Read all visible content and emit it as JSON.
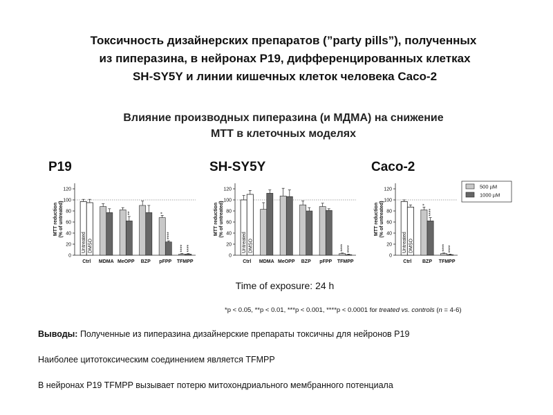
{
  "slide": {
    "title": [
      "Токсичность дизайнерских препаратов (”party pills”), полученных",
      "из пиперазина, в нейронах P19, дифференцированных клетках",
      "SH-SY5Y и линии кишечных клеток человека Caco-2"
    ],
    "subtitle": [
      "Влияние производных пиперазина (и МДМА) на снижение",
      "МТТ в клеточных моделях"
    ],
    "exposure": "Time of exposure: 24 h",
    "footnote": [
      "*p < 0.05, **p < 0.01, ***p < 0.001, ****p < 0.0001 for ",
      "treated vs. controls",
      " (",
      "n",
      " = 4-6)"
    ],
    "conclusions": {
      "label": "Выводы:",
      "lines": [
        " Полученные из пиперазина дизайнерские препараты токсичны для нейронов P19",
        "Наиболее цитотоксическим соединением является TFMPP",
        "В нейронах P19  TFMPP вызывает потерю митохондриального мембранного потенциала"
      ]
    }
  },
  "chart_data": [
    {
      "type": "bar",
      "title": "P19",
      "ylabel": [
        "MTT reduction",
        "(% of untreated)"
      ],
      "categories": [
        "Ctrl",
        "MDMA",
        "MeOPP",
        "BZP",
        "pFPP",
        "TFMPP"
      ],
      "controls": [
        {
          "label": "Untreated",
          "value": 97,
          "error": 4
        },
        {
          "label": "DMSO",
          "value": 95,
          "error": 6
        }
      ],
      "series": [
        {
          "color": "#c8c8c8",
          "values": [
            null,
            88,
            82,
            90,
            68,
            2
          ],
          "errors": [
            null,
            5,
            4,
            8,
            4,
            1
          ],
          "sig": [
            null,
            null,
            null,
            null,
            "*",
            "****"
          ]
        },
        {
          "color": "#666666",
          "values": [
            null,
            77,
            62,
            77,
            24,
            2
          ],
          "errors": [
            null,
            7,
            8,
            13,
            2,
            1
          ],
          "sig": [
            null,
            null,
            "**",
            null,
            "****",
            "****"
          ]
        }
      ],
      "reference": 100,
      "ylim": [
        0,
        130
      ],
      "yticks": [
        0,
        20,
        40,
        60,
        80,
        100,
        120
      ]
    },
    {
      "type": "bar",
      "title": "SH-SY5Y",
      "ylabel": [
        "MTT reduction",
        "(% of untreated)"
      ],
      "categories": [
        "Ctrl",
        "MDMA",
        "MeOPP",
        "BZP",
        "pFPP",
        "TFMPP"
      ],
      "controls": [
        {
          "label": "Untreated",
          "value": 100,
          "error": 8
        },
        {
          "label": "DMSO",
          "value": 110,
          "error": 7
        }
      ],
      "series": [
        {
          "color": "#c8c8c8",
          "values": [
            null,
            83,
            107,
            91,
            88,
            3
          ],
          "errors": [
            null,
            12,
            14,
            7,
            6,
            1
          ],
          "sig": [
            null,
            null,
            null,
            null,
            null,
            "****"
          ]
        },
        {
          "color": "#666666",
          "values": [
            null,
            112,
            106,
            80,
            81,
            1
          ],
          "errors": [
            null,
            6,
            12,
            6,
            3,
            1
          ],
          "sig": [
            null,
            null,
            null,
            null,
            null,
            "****"
          ]
        }
      ],
      "reference": 100,
      "ylim": [
        0,
        130
      ],
      "yticks": [
        0,
        20,
        40,
        60,
        80,
        100,
        120
      ]
    },
    {
      "type": "bar",
      "title": "Caco-2",
      "ylabel": [
        "MTT reduction",
        "(% of untreated)"
      ],
      "categories": [
        "Ctrl",
        "BZP",
        "TFMPP"
      ],
      "controls": [
        {
          "label": "Untreated",
          "value": 97,
          "error": 3
        },
        {
          "label": "DMSO",
          "value": 87,
          "error": 4
        }
      ],
      "series": [
        {
          "name": "500 µM",
          "color": "#c8c8c8",
          "values": [
            null,
            82,
            3
          ],
          "errors": [
            null,
            5,
            1
          ],
          "sig": [
            null,
            "*",
            "****"
          ]
        },
        {
          "name": "1000 µM",
          "color": "#666666",
          "values": [
            null,
            62,
            1
          ],
          "errors": [
            null,
            6,
            1
          ],
          "sig": [
            null,
            "****",
            "****"
          ]
        }
      ],
      "reference": 100,
      "ylim": [
        0,
        130
      ],
      "yticks": [
        0,
        20,
        40,
        60,
        80,
        100,
        120
      ]
    }
  ]
}
